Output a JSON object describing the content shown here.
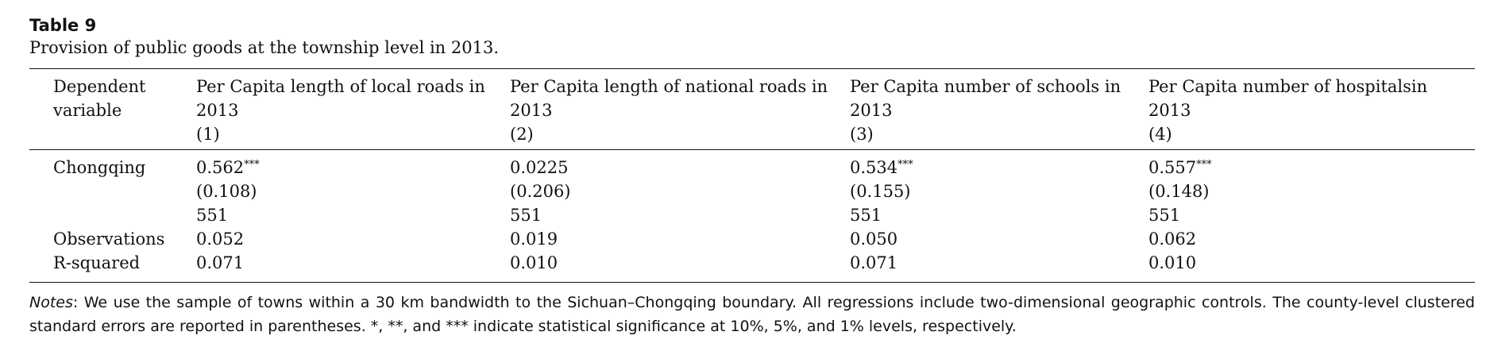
{
  "table": {
    "label": "Table 9",
    "caption": "Provision of public goods at the township level in 2013.",
    "header": {
      "dependent_line1": "Dependent",
      "dependent_line2": "variable",
      "columns": [
        {
          "line1": "Per Capita length of local roads in",
          "line2": "2013",
          "num": "(1)"
        },
        {
          "line1": "Per Capita length of national roads in",
          "line2": "2013",
          "num": "(2)"
        },
        {
          "line1": "Per Capita number of schools in",
          "line2": "2013",
          "num": "(3)"
        },
        {
          "line1": "Per Capita number of hospitalsin",
          "line2": "2013",
          "num": "(4)"
        }
      ]
    },
    "rows": {
      "chongqing_label": "Chongqing",
      "observations_label": "Observations",
      "rsquared_label": "R-squared",
      "values": [
        {
          "coef": "0.562",
          "stars": "***",
          "se": "(0.108)",
          "n": "551",
          "obs": "0.052",
          "r2": "0.071"
        },
        {
          "coef": "0.0225",
          "stars": "",
          "se": "(0.206)",
          "n": "551",
          "obs": "0.019",
          "r2": "0.010"
        },
        {
          "coef": "0.534",
          "stars": "***",
          "se": "(0.155)",
          "n": "551",
          "obs": "0.050",
          "r2": "0.071"
        },
        {
          "coef": "0.557",
          "stars": "***",
          "se": "(0.148)",
          "n": "551",
          "obs": "0.062",
          "r2": "0.010"
        }
      ]
    },
    "notes": {
      "label": "Notes",
      "text": ": We use the sample of towns within a 30 km bandwidth to the Sichuan–Chongqing boundary. All regressions include two-dimensional geographic controls. The county-level clustered standard errors are reported in parentheses. *, **, and *** indicate statistical significance at 10%, 5%, and 1% levels, respectively."
    }
  }
}
